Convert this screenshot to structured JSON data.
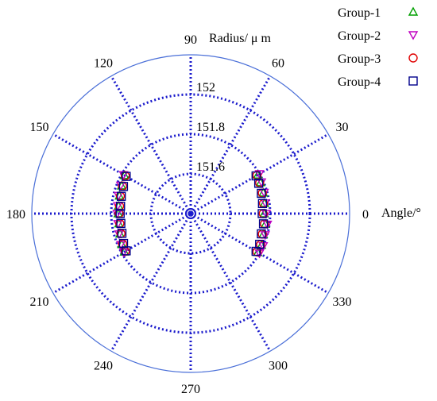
{
  "chart_data": {
    "type": "scatter",
    "coordinate_system": "polar",
    "radial_label": "Radius/ μ m",
    "angular_label": "Angle/°",
    "radial_range": [
      151.4,
      152.2
    ],
    "radial_ticks": [
      "151.6",
      "151.8",
      "152"
    ],
    "angular_ticks": [
      "0",
      "30",
      "60",
      "90",
      "120",
      "150",
      "180",
      "210",
      "240",
      "270",
      "300",
      "330"
    ],
    "grid": true,
    "legend_position": "top-right",
    "series": [
      {
        "name": "Group-1",
        "marker": "triangle-up",
        "color": "#00a000",
        "points": [
          {
            "angle": 0,
            "r": 151.77
          },
          {
            "angle": 8,
            "r": 151.775
          },
          {
            "angle": 16,
            "r": 151.78
          },
          {
            "angle": 24,
            "r": 151.785
          },
          {
            "angle": 30,
            "r": 151.79
          },
          {
            "angle": -8,
            "r": 151.78
          },
          {
            "angle": -16,
            "r": 151.78
          },
          {
            "angle": -24,
            "r": 151.79
          },
          {
            "angle": -30,
            "r": 151.79
          },
          {
            "angle": 150,
            "r": 151.785
          },
          {
            "angle": 158,
            "r": 151.775
          },
          {
            "angle": 166,
            "r": 151.77
          },
          {
            "angle": 174,
            "r": 151.765
          },
          {
            "angle": 180,
            "r": 151.765
          },
          {
            "angle": 188,
            "r": 151.765
          },
          {
            "angle": 196,
            "r": 151.77
          },
          {
            "angle": 204,
            "r": 151.78
          },
          {
            "angle": 210,
            "r": 151.785
          }
        ]
      },
      {
        "name": "Group-2",
        "marker": "triangle-down",
        "color": "#c000c0",
        "points": [
          {
            "angle": 0,
            "r": 151.78
          },
          {
            "angle": 8,
            "r": 151.78
          },
          {
            "angle": 16,
            "r": 151.785
          },
          {
            "angle": 24,
            "r": 151.79
          },
          {
            "angle": 30,
            "r": 151.8
          },
          {
            "angle": -8,
            "r": 151.79
          },
          {
            "angle": -16,
            "r": 151.79
          },
          {
            "angle": -24,
            "r": 151.8
          },
          {
            "angle": -30,
            "r": 151.8
          },
          {
            "angle": 150,
            "r": 151.79
          },
          {
            "angle": 158,
            "r": 151.78
          },
          {
            "angle": 166,
            "r": 151.775
          },
          {
            "angle": 174,
            "r": 151.77
          },
          {
            "angle": 180,
            "r": 151.77
          },
          {
            "angle": 188,
            "r": 151.77
          },
          {
            "angle": 196,
            "r": 151.775
          },
          {
            "angle": 204,
            "r": 151.785
          },
          {
            "angle": 210,
            "r": 151.79
          }
        ]
      },
      {
        "name": "Group-3",
        "marker": "circle",
        "color": "#e00000",
        "points": [
          {
            "angle": 0,
            "r": 151.765
          },
          {
            "angle": 8,
            "r": 151.77
          },
          {
            "angle": 16,
            "r": 151.775
          },
          {
            "angle": 24,
            "r": 151.78
          },
          {
            "angle": 30,
            "r": 151.785
          },
          {
            "angle": -8,
            "r": 151.775
          },
          {
            "angle": -16,
            "r": 151.775
          },
          {
            "angle": -24,
            "r": 151.785
          },
          {
            "angle": -30,
            "r": 151.785
          },
          {
            "angle": 150,
            "r": 151.78
          },
          {
            "angle": 158,
            "r": 151.77
          },
          {
            "angle": 166,
            "r": 151.765
          },
          {
            "angle": 174,
            "r": 151.76
          },
          {
            "angle": 180,
            "r": 151.76
          },
          {
            "angle": 188,
            "r": 151.76
          },
          {
            "angle": 196,
            "r": 151.765
          },
          {
            "angle": 204,
            "r": 151.775
          },
          {
            "angle": 210,
            "r": 151.78
          }
        ]
      },
      {
        "name": "Group-4",
        "marker": "square",
        "color": "#00008b",
        "points": [
          {
            "angle": 0,
            "r": 151.76
          },
          {
            "angle": 8,
            "r": 151.765
          },
          {
            "angle": 16,
            "r": 151.77
          },
          {
            "angle": 24,
            "r": 151.775
          },
          {
            "angle": 30,
            "r": 151.78
          },
          {
            "angle": -8,
            "r": 151.77
          },
          {
            "angle": -16,
            "r": 151.77
          },
          {
            "angle": -24,
            "r": 151.78
          },
          {
            "angle": -30,
            "r": 151.78
          },
          {
            "angle": 150,
            "r": 151.775
          },
          {
            "angle": 158,
            "r": 151.765
          },
          {
            "angle": 166,
            "r": 151.76
          },
          {
            "angle": 174,
            "r": 151.755
          },
          {
            "angle": 180,
            "r": 151.755
          },
          {
            "angle": 188,
            "r": 151.755
          },
          {
            "angle": 196,
            "r": 151.76
          },
          {
            "angle": 204,
            "r": 151.77
          },
          {
            "angle": 210,
            "r": 151.775
          }
        ]
      }
    ],
    "colors": {
      "grid": "#1a1acc",
      "outer_circle": "#4a6fd8"
    }
  }
}
